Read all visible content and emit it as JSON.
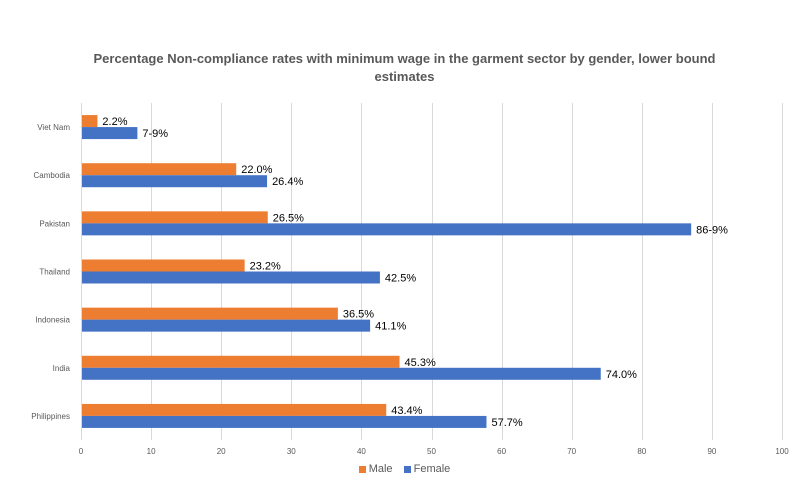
{
  "chart_data": {
    "type": "bar",
    "orientation": "horizontal",
    "title": "Percentage Non-compliance rates with minimum wage in the garment sector by gender, lower bound estimates",
    "title_lines": [
      "Percentage Non-compliance rates with minimum wage in the garment sector by gender, lower bound",
      "estimates"
    ],
    "categories": [
      "Viet Nam",
      "Cambodia",
      "Pakistan",
      "Thailand",
      "Indonesia",
      "India",
      "Philippines"
    ],
    "series": [
      {
        "name": "Male",
        "color": "#ED7D31",
        "values": [
          2.2,
          22.0,
          26.5,
          23.2,
          36.5,
          45.3,
          43.4
        ],
        "labels": [
          "2.2%",
          "22.0%",
          "26.5%",
          "23.2%",
          "36.5%",
          "45.3%",
          "43.4%"
        ]
      },
      {
        "name": "Female",
        "color": "#4472C4",
        "values": [
          7.9,
          26.4,
          86.9,
          42.5,
          41.1,
          74.0,
          57.7
        ],
        "labels": [
          "7-9%",
          "26.4%",
          "86-9%",
          "42.5%",
          "41.1%",
          "74.0%",
          "57.7%"
        ]
      }
    ],
    "xlabel": "",
    "ylabel": "",
    "xlim": [
      0,
      100
    ],
    "xticks": [
      0,
      10,
      20,
      30,
      40,
      50,
      60,
      70,
      80,
      90,
      100
    ],
    "grid": true,
    "gridline_color": "#D9D9D9",
    "legend": "bottom"
  }
}
